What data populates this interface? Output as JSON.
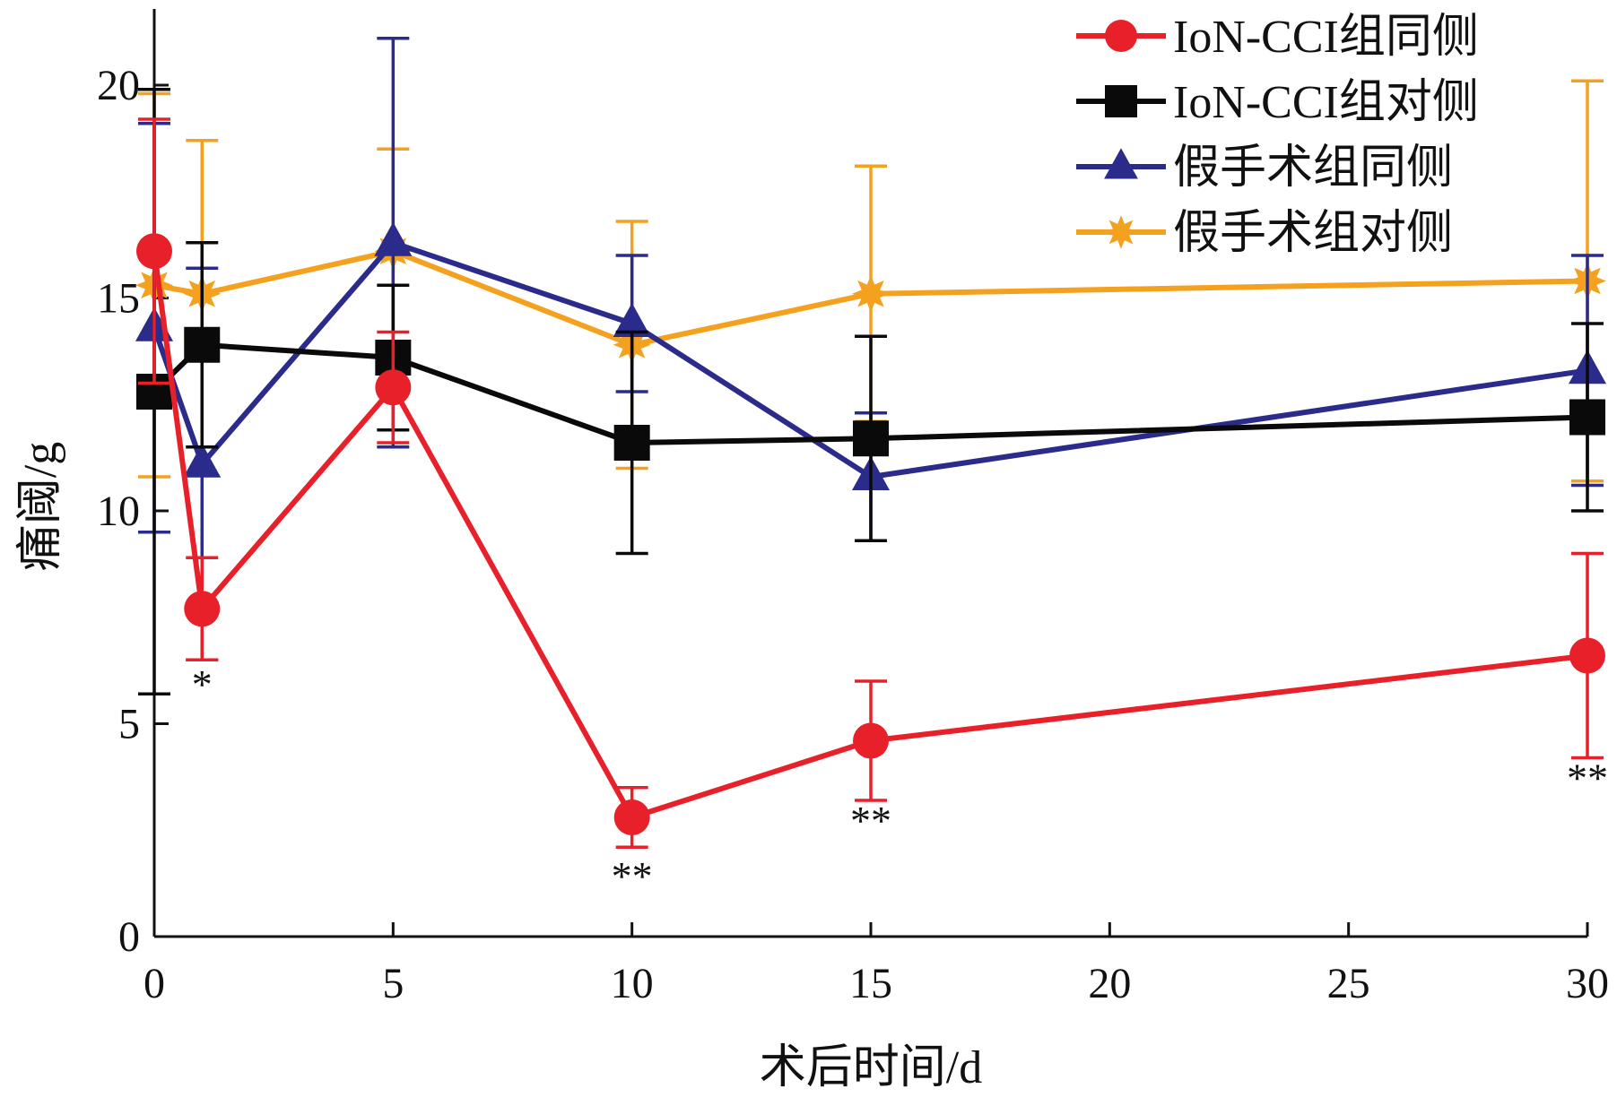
{
  "chart_data": {
    "type": "line",
    "xlabel": "术后时间/d",
    "ylabel": "痛阈/g",
    "xlim": [
      0,
      30
    ],
    "ylim": [
      0,
      22
    ],
    "x_ticks": [
      0,
      5,
      10,
      15,
      20,
      25,
      30
    ],
    "y_ticks": [
      0,
      5,
      10,
      15,
      20
    ],
    "grid": false,
    "legend_position": "top-right",
    "x": [
      0,
      1,
      5,
      10,
      15,
      30
    ],
    "series": [
      {
        "name": "IoN-CCI组同侧",
        "color": "#e8202a",
        "marker": "circle",
        "values": [
          16.1,
          7.7,
          12.9,
          2.8,
          4.6,
          6.6
        ],
        "errors": [
          3.1,
          1.2,
          1.3,
          0.7,
          1.4,
          2.4
        ]
      },
      {
        "name": "IoN-CCI组对侧",
        "color": "#0a0a0a",
        "marker": "square",
        "values": [
          12.8,
          13.9,
          13.6,
          11.6,
          11.7,
          12.2
        ],
        "errors": [
          7.1,
          2.4,
          1.7,
          2.6,
          2.4,
          2.2
        ]
      },
      {
        "name": "假手术组同侧",
        "color": "#2b2b8c",
        "marker": "triangle",
        "values": [
          14.3,
          11.1,
          16.3,
          14.4,
          10.8,
          13.3
        ],
        "errors": [
          4.8,
          4.6,
          4.8,
          1.6,
          1.5,
          2.7
        ]
      },
      {
        "name": "假手术组对侧",
        "color": "#f4a11f",
        "marker": "star",
        "values": [
          15.3,
          15.1,
          16.1,
          13.9,
          15.1,
          15.4
        ],
        "errors": [
          4.5,
          3.6,
          2.4,
          2.9,
          3.0,
          4.7
        ]
      }
    ],
    "annotations": [
      {
        "text": "*",
        "x": 1,
        "y": 5.6
      },
      {
        "text": "**",
        "x": 10,
        "y": 1.1
      },
      {
        "text": "**",
        "x": 15,
        "y": 2.4
      },
      {
        "text": "**",
        "x": 30,
        "y": 3.4
      }
    ]
  }
}
